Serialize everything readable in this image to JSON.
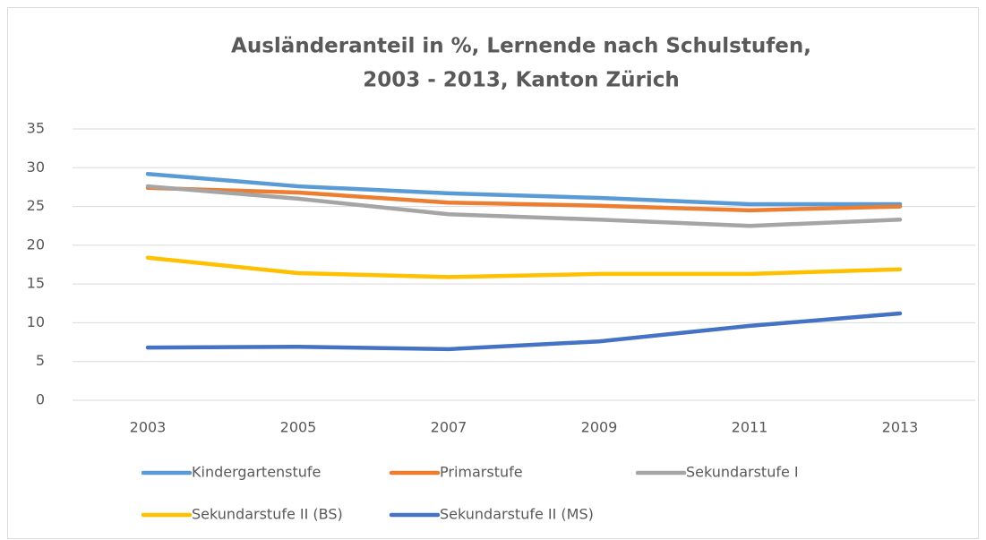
{
  "chart_data": {
    "type": "line",
    "title": [
      "Ausländeranteil in %, Lernende nach Schulstufen,",
      "2003 - 2013, Kanton Zürich"
    ],
    "categories": [
      "2003",
      "2005",
      "2007",
      "2009",
      "2011",
      "2013"
    ],
    "series": [
      {
        "name": "Kindergartenstufe",
        "color": "#5b9bd5",
        "values": [
          29.2,
          27.6,
          26.7,
          26.1,
          25.3,
          25.3
        ]
      },
      {
        "name": "Primarstufe",
        "color": "#ed7d31",
        "values": [
          27.4,
          26.8,
          25.5,
          25.1,
          24.5,
          25.0
        ]
      },
      {
        "name": "Sekundarstufe I",
        "color": "#a5a5a5",
        "values": [
          27.6,
          26.0,
          24.0,
          23.3,
          22.5,
          23.3
        ]
      },
      {
        "name": "Sekundarstufe II (BS)",
        "color": "#ffc000",
        "values": [
          18.4,
          16.4,
          15.9,
          16.3,
          16.3,
          16.9
        ]
      },
      {
        "name": "Sekundarstufe II (MS)",
        "color": "#4472c4",
        "values": [
          6.8,
          6.9,
          6.6,
          7.6,
          9.6,
          11.2
        ]
      }
    ],
    "ylim": [
      0,
      35
    ],
    "yticks": [
      0,
      5,
      10,
      15,
      20,
      25,
      30,
      35
    ],
    "grid": true,
    "legend": "bottom"
  }
}
